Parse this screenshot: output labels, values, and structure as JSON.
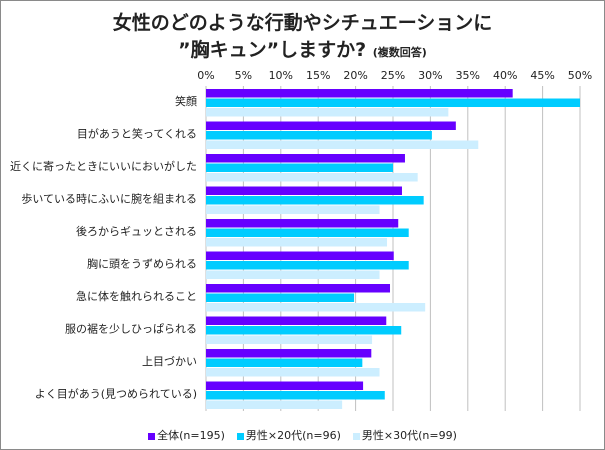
{
  "chart_data": {
    "type": "bar",
    "orientation": "horizontal",
    "title": "女性のどのような行動やシチュエーションに",
    "title_line2": "”胸キュン”しますか?",
    "subtitle": "(複数回答)",
    "xlim": [
      0,
      50
    ],
    "xticks": [
      "0%",
      "5%",
      "10%",
      "15%",
      "20%",
      "25%",
      "30%",
      "35%",
      "40%",
      "45%",
      "50%"
    ],
    "grid": true,
    "legend": "bottom",
    "categories": [
      "笑顔",
      "目があうと笑ってくれる",
      "近くに寄ったときにいいにおいがした",
      "歩いている時にふいに腕を組まれる",
      "後ろからギュッとされる",
      "胸に頭をうずめられる",
      "急に体を触れられること",
      "服の裾を少しひっぱられる",
      "上目づかい",
      "よく目があう(見つめられている)"
    ],
    "series": [
      {
        "name": "全体(n=195)",
        "color": "#6600ff",
        "values": [
          41.0,
          33.4,
          26.6,
          26.2,
          25.7,
          25.1,
          24.6,
          24.1,
          22.1,
          21.0
        ]
      },
      {
        "name": "男性×20代(n=96)",
        "color": "#00ccff",
        "values": [
          50.0,
          30.2,
          25.0,
          29.1,
          27.1,
          27.1,
          19.8,
          26.1,
          20.9,
          23.9
        ]
      },
      {
        "name": "男性×30代(n=99)",
        "color": "#cceeff",
        "values": [
          32.4,
          36.4,
          28.3,
          23.2,
          24.2,
          23.2,
          29.3,
          22.2,
          23.2,
          18.2
        ]
      }
    ]
  }
}
